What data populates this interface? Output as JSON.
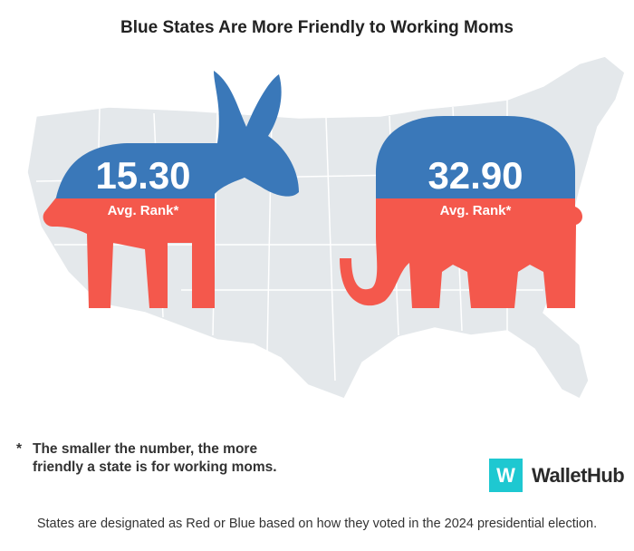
{
  "title": "Blue States Are More Friendly to Working Moms",
  "democrat": {
    "value": "15.30",
    "label": "Avg. Rank*"
  },
  "republican": {
    "value": "32.90",
    "label": "Avg. Rank*"
  },
  "footnote": {
    "marker": "*",
    "text_line1": "The smaller the number, the more",
    "text_line2": "friendly a state is for working moms."
  },
  "logo": {
    "mark": "W",
    "name": "WalletHub"
  },
  "source": "States are designated as Red or Blue based on how they voted in the 2024 presidential election.",
  "colors": {
    "blue": "#3a78b9",
    "red": "#f4584c",
    "map": "#e4e8eb",
    "logo": "#1ec8d1"
  }
}
